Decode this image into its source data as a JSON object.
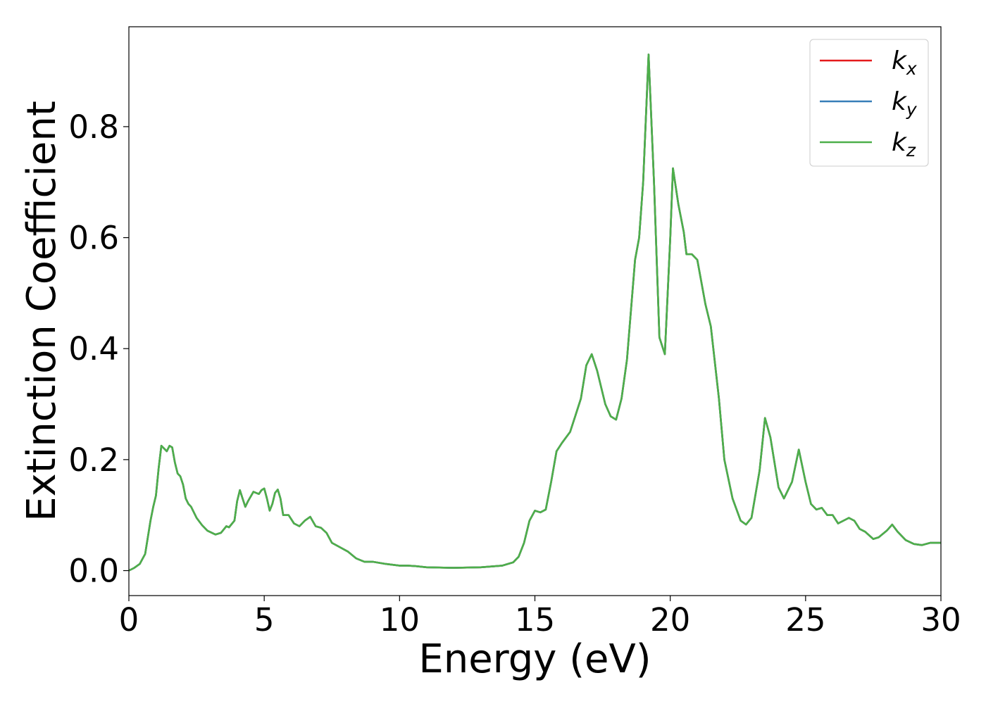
{
  "chart_data": {
    "type": "line",
    "xlabel": "Energy (eV)",
    "ylabel": "Extinction Coefficient",
    "xlim": [
      0,
      30
    ],
    "ylim": [
      -0.045,
      0.98
    ],
    "xticks": [
      0,
      5,
      10,
      15,
      20,
      25,
      30
    ],
    "xtick_labels": [
      "0",
      "5",
      "10",
      "15",
      "20",
      "25",
      "30"
    ],
    "yticks": [
      0.0,
      0.2,
      0.4,
      0.6,
      0.8
    ],
    "ytick_labels": [
      "0.0",
      "0.2",
      "0.4",
      "0.6",
      "0.8"
    ],
    "grid": false,
    "legend_position": "top-right",
    "series": [
      {
        "name": "k_x",
        "label_main": "k",
        "label_sub": "x",
        "color": "#e41a1c"
      },
      {
        "name": "k_y",
        "label_main": "k",
        "label_sub": "y",
        "color": "#377eb8"
      },
      {
        "name": "k_z",
        "label_main": "k",
        "label_sub": "z",
        "color": "#4daf4a"
      }
    ],
    "x": [
      0,
      0.2,
      0.4,
      0.6,
      0.8,
      0.9,
      1.0,
      1.1,
      1.2,
      1.3,
      1.4,
      1.5,
      1.6,
      1.7,
      1.8,
      1.9,
      2.0,
      2.1,
      2.2,
      2.3,
      2.5,
      2.7,
      2.9,
      3.2,
      3.4,
      3.6,
      3.7,
      3.9,
      4.0,
      4.1,
      4.2,
      4.3,
      4.4,
      4.6,
      4.8,
      4.9,
      5.0,
      5.1,
      5.2,
      5.3,
      5.4,
      5.5,
      5.6,
      5.7,
      5.9,
      6.1,
      6.3,
      6.5,
      6.7,
      6.9,
      7.1,
      7.3,
      7.5,
      7.8,
      8.1,
      8.4,
      8.7,
      9.0,
      9.5,
      10.0,
      10.3,
      10.6,
      11.0,
      12.0,
      13.0,
      13.8,
      14.2,
      14.4,
      14.6,
      14.8,
      15.0,
      15.2,
      15.4,
      15.6,
      15.8,
      16.0,
      16.3,
      16.5,
      16.7,
      16.9,
      17.1,
      17.3,
      17.6,
      17.8,
      18.0,
      18.2,
      18.4,
      18.7,
      18.85,
      19.0,
      19.2,
      19.4,
      19.6,
      19.8,
      20.0,
      20.1,
      20.3,
      20.5,
      20.6,
      20.8,
      21.0,
      21.3,
      21.5,
      21.8,
      22.0,
      22.3,
      22.6,
      22.8,
      23.0,
      23.3,
      23.5,
      23.7,
      24.0,
      24.2,
      24.5,
      24.75,
      25.0,
      25.2,
      25.4,
      25.6,
      25.8,
      26.0,
      26.2,
      26.4,
      26.6,
      26.8,
      27.0,
      27.2,
      27.5,
      27.7,
      28.0,
      28.2,
      28.4,
      28.7,
      29.0,
      29.3,
      29.6,
      30.0
    ],
    "values": [
      0.0,
      0.005,
      0.012,
      0.03,
      0.09,
      0.115,
      0.135,
      0.185,
      0.225,
      0.22,
      0.215,
      0.225,
      0.222,
      0.195,
      0.175,
      0.17,
      0.155,
      0.13,
      0.12,
      0.115,
      0.095,
      0.082,
      0.072,
      0.065,
      0.068,
      0.08,
      0.078,
      0.09,
      0.125,
      0.145,
      0.13,
      0.115,
      0.125,
      0.142,
      0.138,
      0.145,
      0.148,
      0.13,
      0.108,
      0.12,
      0.14,
      0.146,
      0.13,
      0.1,
      0.1,
      0.085,
      0.08,
      0.09,
      0.097,
      0.08,
      0.077,
      0.068,
      0.05,
      0.042,
      0.034,
      0.022,
      0.016,
      0.016,
      0.012,
      0.009,
      0.009,
      0.008,
      0.006,
      0.005,
      0.006,
      0.009,
      0.015,
      0.025,
      0.05,
      0.09,
      0.108,
      0.105,
      0.11,
      0.16,
      0.215,
      0.23,
      0.25,
      0.28,
      0.31,
      0.37,
      0.39,
      0.36,
      0.3,
      0.278,
      0.272,
      0.31,
      0.38,
      0.56,
      0.6,
      0.7,
      0.93,
      0.7,
      0.42,
      0.39,
      0.6,
      0.725,
      0.66,
      0.61,
      0.57,
      0.57,
      0.56,
      0.48,
      0.44,
      0.31,
      0.2,
      0.13,
      0.09,
      0.083,
      0.095,
      0.18,
      0.275,
      0.24,
      0.15,
      0.13,
      0.16,
      0.218,
      0.16,
      0.12,
      0.11,
      0.113,
      0.1,
      0.1,
      0.085,
      0.09,
      0.095,
      0.09,
      0.075,
      0.07,
      0.057,
      0.06,
      0.072,
      0.083,
      0.07,
      0.055,
      0.048,
      0.046,
      0.05,
      0.05
    ]
  }
}
